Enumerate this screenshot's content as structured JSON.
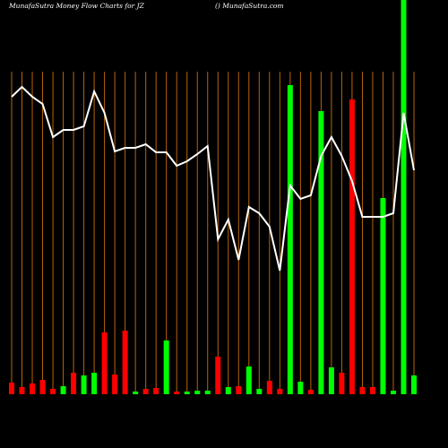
{
  "chart_data": {
    "type": "bar",
    "title": "MunafaSutra  Money Flow  Charts for JZ",
    "subtitle": "() MunafaSutra.com",
    "bars": {
      "values": [
        13,
        8,
        12,
        16,
        6,
        9,
        24,
        21,
        24,
        69,
        22,
        71,
        3,
        6,
        7,
        60,
        3,
        3,
        4,
        4,
        42,
        8,
        9,
        31,
        6,
        15,
        6,
        345,
        14,
        5,
        316,
        30,
        24,
        329,
        8,
        8,
        219,
        4,
        445,
        21
      ],
      "colors": [
        "#ff0000",
        "#ff0000",
        "#ff0000",
        "#ff0000",
        "#ff0000",
        "#00ff00",
        "#ff0000",
        "#00ff00",
        "#00ff00",
        "#ff0000",
        "#ff0000",
        "#ff0000",
        "#00ff00",
        "#ff0000",
        "#ff0000",
        "#00ff00",
        "#ff0000",
        "#00ff00",
        "#00ff00",
        "#00ff00",
        "#ff0000",
        "#00ff00",
        "#ff0000",
        "#00ff00",
        "#00ff00",
        "#ff0000",
        "#ff0000",
        "#00ff00",
        "#00ff00",
        "#ff0000",
        "#00ff00",
        "#00ff00",
        "#ff0000",
        "#ff0000",
        "#ff0000",
        "#ff0000",
        "#00ff00",
        "#00ff00",
        "#00ff00",
        "#00ff00"
      ]
    },
    "ylim": [
      0,
      440
    ],
    "line": {
      "color": "#ffffff",
      "values": [
        392,
        403,
        392,
        384,
        347,
        355,
        355,
        359,
        398,
        374,
        331,
        335,
        335,
        339,
        330,
        330,
        315,
        320,
        328,
        337,
        233,
        255,
        210,
        269,
        262,
        247,
        198,
        293,
        278,
        282,
        326,
        347,
        326,
        298,
        258,
        258,
        258,
        262,
        374,
        310
      ]
    },
    "y2lim": [
      0,
      500
    ],
    "grid_color": "#b8640a"
  }
}
